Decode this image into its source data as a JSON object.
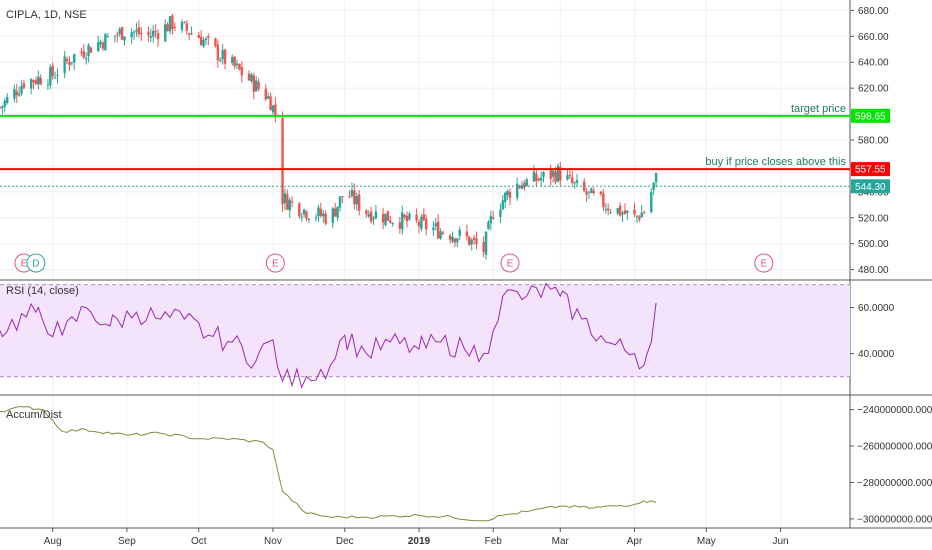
{
  "chart_data": [
    {
      "type": "candlestick",
      "title": "CIPLA, 1D, NSE",
      "ylim": [
        472,
        688
      ],
      "y_ticks": [
        "680.00",
        "660.00",
        "640.00",
        "620.00",
        "600.00",
        "580.00",
        "560.00",
        "540.00",
        "520.00",
        "500.00",
        "480.00"
      ],
      "y_tick_values": [
        680,
        660,
        640,
        620,
        600,
        580,
        560,
        540,
        520,
        500,
        480
      ],
      "x_ticks": [
        {
          "label": "Aug",
          "date": "2018-08-01"
        },
        {
          "label": "Sep",
          "date": "2018-09-01"
        },
        {
          "label": "Oct",
          "date": "2018-10-01"
        },
        {
          "label": "Nov",
          "date": "2018-11-01"
        },
        {
          "label": "Dec",
          "date": "2018-12-01"
        },
        {
          "label": "2019",
          "date": "2019-01-01"
        },
        {
          "label": "Feb",
          "date": "2019-02-01"
        },
        {
          "label": "Mar",
          "date": "2019-03-01"
        },
        {
          "label": "Apr",
          "date": "2019-04-01"
        },
        {
          "label": "May",
          "date": "2019-05-01"
        },
        {
          "label": "Jun",
          "date": "2019-06-01"
        }
      ],
      "date_range": [
        "2018-07-10",
        "2019-06-30"
      ],
      "close_series": {
        "dates": [
          "2018-07-10",
          "2018-07-20",
          "2018-08-01",
          "2018-08-10",
          "2018-08-20",
          "2018-09-01",
          "2018-09-10",
          "2018-09-20",
          "2018-10-01",
          "2018-10-10",
          "2018-10-20",
          "2018-10-29",
          "2018-10-31",
          "2018-11-02",
          "2018-11-05",
          "2018-11-15",
          "2018-11-25",
          "2018-12-01",
          "2018-12-10",
          "2018-12-20",
          "2019-01-01",
          "2019-01-10",
          "2019-01-20",
          "2019-01-28",
          "2019-02-01",
          "2019-02-10",
          "2019-02-20",
          "2019-02-28",
          "2019-03-10",
          "2019-03-20",
          "2019-04-01",
          "2019-04-05",
          "2019-04-10"
        ],
        "values": [
          605,
          625,
          630,
          645,
          655,
          665,
          660,
          670,
          660,
          645,
          630,
          615,
          610,
          600,
          535,
          525,
          520,
          540,
          525,
          520,
          515,
          510,
          505,
          495,
          525,
          545,
          550,
          555,
          540,
          530,
          520,
          525,
          550
        ]
      },
      "lines": [
        {
          "label": "target price",
          "value": 598.65,
          "color": "#00e600",
          "badge": "598.65",
          "badge_color": "#00e600"
        },
        {
          "label": "buy if price closes above this",
          "value": 557.55,
          "color": "#ff0000",
          "badge": "557.55",
          "badge_color": "#ff0000"
        },
        {
          "label": "",
          "value": 544.3,
          "color": "#26a69a",
          "badge": "544.30",
          "badge_color": "#26a69a"
        }
      ],
      "events": [
        {
          "date": "2018-07-20",
          "letter": "E",
          "color": "#e0557a"
        },
        {
          "date": "2018-07-25",
          "letter": "D",
          "color": "#26a69a"
        },
        {
          "date": "2018-11-02",
          "letter": "E",
          "color": "#e0557a"
        },
        {
          "date": "2019-02-08",
          "letter": "E",
          "color": "#e0557a"
        },
        {
          "date": "2019-05-25",
          "letter": "E",
          "color": "#e0557a"
        }
      ],
      "up_color": "#26a69a",
      "down_color": "#ef5350"
    },
    {
      "type": "line",
      "title": "RSI (14, close)",
      "ylim": [
        22,
        72
      ],
      "band": [
        30,
        70
      ],
      "y_ticks": [
        "60.0000",
        "40.0000"
      ],
      "y_tick_values": [
        60,
        40
      ],
      "color": "#9c27b0",
      "band_color": "#f3e3fb",
      "x": [
        "2018-07-10",
        "2018-07-25",
        "2018-08-05",
        "2018-08-15",
        "2018-08-25",
        "2018-09-05",
        "2018-09-15",
        "2018-09-25",
        "2018-10-05",
        "2018-10-15",
        "2018-10-25",
        "2018-11-01",
        "2018-11-05",
        "2018-11-15",
        "2018-11-25",
        "2018-12-01",
        "2018-12-10",
        "2018-12-20",
        "2019-01-01",
        "2019-01-10",
        "2019-01-20",
        "2019-01-28",
        "2019-02-01",
        "2019-02-05",
        "2019-02-15",
        "2019-02-25",
        "2019-03-01",
        "2019-03-10",
        "2019-03-20",
        "2019-04-01",
        "2019-04-05",
        "2019-04-08",
        "2019-04-10"
      ],
      "y": [
        50,
        58,
        48,
        60,
        52,
        58,
        55,
        55,
        48,
        45,
        37,
        46,
        28,
        30,
        35,
        48,
        40,
        45,
        42,
        45,
        42,
        40,
        50,
        65,
        65,
        68,
        65,
        55,
        45,
        40,
        35,
        45,
        62
      ]
    },
    {
      "type": "line",
      "title": "Accum/Dist",
      "ylim": [
        -305000000,
        -232000000
      ],
      "y_ticks": [
        "−240000000.0000",
        "−260000000.0000",
        "−280000000.0000",
        "−300000000.0000"
      ],
      "y_tick_values": [
        -240000000,
        -260000000,
        -280000000,
        -300000000
      ],
      "color": "#7f8c3a",
      "x": [
        "2018-07-10",
        "2018-07-20",
        "2018-07-28",
        "2018-08-05",
        "2018-08-15",
        "2018-09-01",
        "2018-09-15",
        "2018-10-01",
        "2018-10-15",
        "2018-10-28",
        "2018-11-01",
        "2018-11-05",
        "2018-11-15",
        "2018-11-25",
        "2018-12-10",
        "2019-01-01",
        "2019-01-15",
        "2019-01-28",
        "2019-02-05",
        "2019-02-15",
        "2019-03-01",
        "2019-03-15",
        "2019-04-01",
        "2019-04-05",
        "2019-04-10"
      ],
      "y": [
        -241000000,
        -238500000,
        -240000000,
        -252000000,
        -251000000,
        -254000000,
        -253000000,
        -256000000,
        -256000000,
        -258000000,
        -262000000,
        -285000000,
        -297000000,
        -299000000,
        -299000000,
        -298000000,
        -299000000,
        -301000000,
        -298000000,
        -296000000,
        -293000000,
        -294000000,
        -292000000,
        -290000000,
        -291000000
      ]
    }
  ]
}
